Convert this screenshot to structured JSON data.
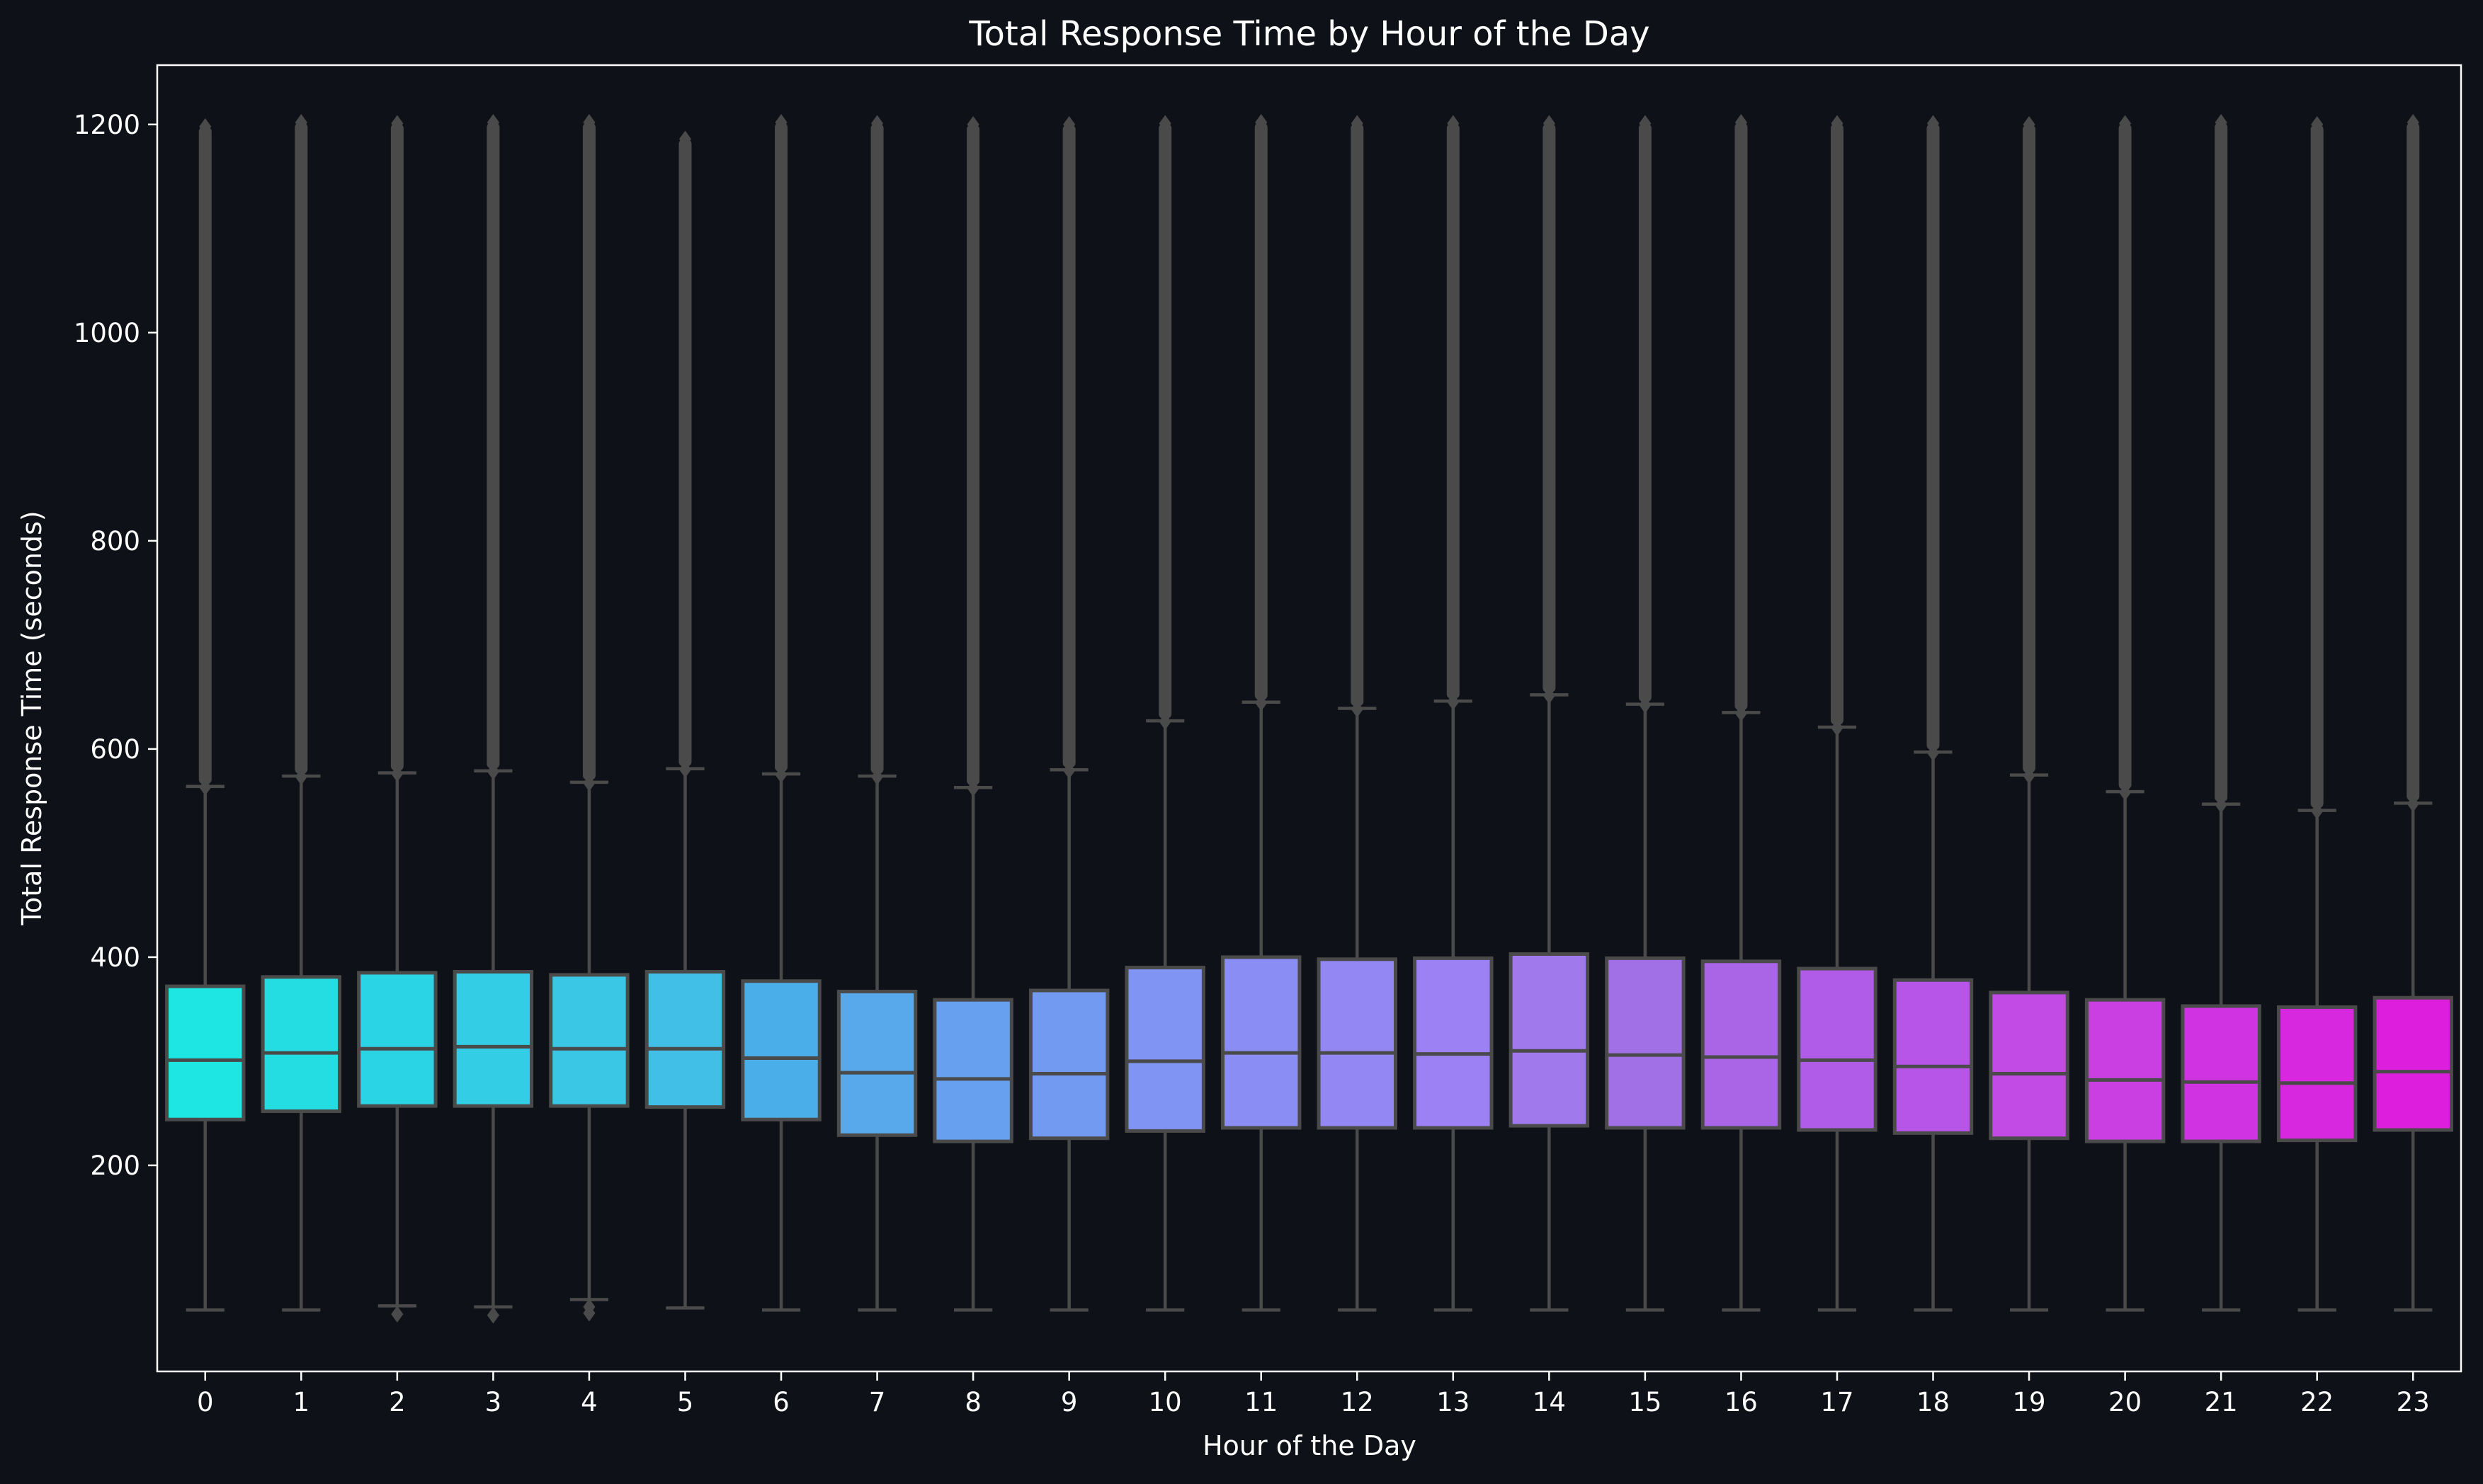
{
  "chart_data": {
    "type": "box",
    "title": "Total Response Time by Hour of the Day",
    "xlabel": "Hour of the Day",
    "ylabel": "Total Response Time (seconds)",
    "ylim": [
      2,
      1257
    ],
    "yticks": [
      200,
      400,
      600,
      800,
      1000,
      1200
    ],
    "categories": [
      "0",
      "1",
      "2",
      "3",
      "4",
      "5",
      "6",
      "7",
      "8",
      "9",
      "10",
      "11",
      "12",
      "13",
      "14",
      "15",
      "16",
      "17",
      "18",
      "19",
      "20",
      "21",
      "22",
      "23"
    ],
    "series": [
      {
        "values": [
          {
            "q1": 244,
            "median": 301,
            "q3": 372,
            "whisker_low": 61,
            "whisker_high": 564,
            "outliers_low": [],
            "outliers_high_min": 566,
            "outliers_high_max": 1198
          },
          {
            "q1": 252,
            "median": 308,
            "q3": 381,
            "whisker_low": 61,
            "whisker_high": 574,
            "outliers_low": [],
            "outliers_high_min": 576,
            "outliers_high_max": 1202
          },
          {
            "q1": 257,
            "median": 312,
            "q3": 385,
            "whisker_low": 65,
            "whisker_high": 577,
            "outliers_low": [
              57
            ],
            "outliers_high_min": 579,
            "outliers_high_max": 1201
          },
          {
            "q1": 257,
            "median": 314,
            "q3": 386,
            "whisker_low": 64,
            "whisker_high": 579,
            "outliers_low": [
              56
            ],
            "outliers_high_min": 581,
            "outliers_high_max": 1202
          },
          {
            "q1": 257,
            "median": 312,
            "q3": 383,
            "whisker_low": 71,
            "whisker_high": 568,
            "outliers_low": [
              58,
              64
            ],
            "outliers_high_min": 570,
            "outliers_high_max": 1202
          },
          {
            "q1": 256,
            "median": 312,
            "q3": 386,
            "whisker_low": 63,
            "whisker_high": 581,
            "outliers_low": [],
            "outliers_high_min": 583,
            "outliers_high_max": 1186
          },
          {
            "q1": 244,
            "median": 303,
            "q3": 377,
            "whisker_low": 61,
            "whisker_high": 576,
            "outliers_low": [],
            "outliers_high_min": 578,
            "outliers_high_max": 1202
          },
          {
            "q1": 229,
            "median": 289,
            "q3": 367,
            "whisker_low": 61,
            "whisker_high": 574,
            "outliers_low": [],
            "outliers_high_min": 576,
            "outliers_high_max": 1201
          },
          {
            "q1": 223,
            "median": 283,
            "q3": 359,
            "whisker_low": 61,
            "whisker_high": 563,
            "outliers_low": [],
            "outliers_high_min": 565,
            "outliers_high_max": 1200
          },
          {
            "q1": 226,
            "median": 288,
            "q3": 368,
            "whisker_low": 61,
            "whisker_high": 580,
            "outliers_low": [],
            "outliers_high_min": 582,
            "outliers_high_max": 1200
          },
          {
            "q1": 233,
            "median": 300,
            "q3": 390,
            "whisker_low": 61,
            "whisker_high": 627,
            "outliers_low": [],
            "outliers_high_min": 629,
            "outliers_high_max": 1201
          },
          {
            "q1": 236,
            "median": 308,
            "q3": 400,
            "whisker_low": 61,
            "whisker_high": 645,
            "outliers_low": [],
            "outliers_high_min": 647,
            "outliers_high_max": 1202
          },
          {
            "q1": 236,
            "median": 308,
            "q3": 398,
            "whisker_low": 61,
            "whisker_high": 639,
            "outliers_low": [],
            "outliers_high_min": 641,
            "outliers_high_max": 1201
          },
          {
            "q1": 236,
            "median": 307,
            "q3": 399,
            "whisker_low": 61,
            "whisker_high": 646,
            "outliers_low": [],
            "outliers_high_min": 648,
            "outliers_high_max": 1201
          },
          {
            "q1": 238,
            "median": 310,
            "q3": 403,
            "whisker_low": 61,
            "whisker_high": 652,
            "outliers_low": [],
            "outliers_high_min": 654,
            "outliers_high_max": 1201
          },
          {
            "q1": 236,
            "median": 306,
            "q3": 399,
            "whisker_low": 61,
            "whisker_high": 643,
            "outliers_low": [],
            "outliers_high_min": 645,
            "outliers_high_max": 1201
          },
          {
            "q1": 236,
            "median": 304,
            "q3": 396,
            "whisker_low": 61,
            "whisker_high": 635,
            "outliers_low": [],
            "outliers_high_min": 637,
            "outliers_high_max": 1202
          },
          {
            "q1": 234,
            "median": 301,
            "q3": 389,
            "whisker_low": 61,
            "whisker_high": 621,
            "outliers_low": [],
            "outliers_high_min": 623,
            "outliers_high_max": 1201
          },
          {
            "q1": 231,
            "median": 295,
            "q3": 378,
            "whisker_low": 61,
            "whisker_high": 597,
            "outliers_low": [],
            "outliers_high_min": 599,
            "outliers_high_max": 1201
          },
          {
            "q1": 226,
            "median": 288,
            "q3": 366,
            "whisker_low": 61,
            "whisker_high": 575,
            "outliers_low": [],
            "outliers_high_min": 577,
            "outliers_high_max": 1200
          },
          {
            "q1": 223,
            "median": 282,
            "q3": 359,
            "whisker_low": 61,
            "whisker_high": 559,
            "outliers_low": [],
            "outliers_high_min": 561,
            "outliers_high_max": 1201
          },
          {
            "q1": 223,
            "median": 280,
            "q3": 353,
            "whisker_low": 61,
            "whisker_high": 547,
            "outliers_low": [],
            "outliers_high_min": 549,
            "outliers_high_max": 1202
          },
          {
            "q1": 224,
            "median": 279,
            "q3": 352,
            "whisker_low": 61,
            "whisker_high": 541,
            "outliers_low": [],
            "outliers_high_min": 543,
            "outliers_high_max": 1200
          },
          {
            "q1": 234,
            "median": 290,
            "q3": 361,
            "whisker_low": 61,
            "whisker_high": 548,
            "outliers_low": [],
            "outliers_high_min": 550,
            "outliers_high_max": 1202
          }
        ]
      }
    ],
    "box_colors": [
      "#1ee6e2",
      "#24dde3",
      "#2ad4e4",
      "#33cde5",
      "#3ac6e5",
      "#41bfe6",
      "#4aafe8",
      "#58a8ec",
      "#66a0ef",
      "#729af1",
      "#7f94f3",
      "#898df4",
      "#9387f4",
      "#9c81f4",
      "#a07aec",
      "#a270e6",
      "#a965e6",
      "#b05ce8",
      "#b755e8",
      "#c14be4",
      "#c93fe2",
      "#d033e2",
      "#d728e0",
      "#de1edd"
    ],
    "line_color": "#4a4a4a",
    "background_color": "#0e1117",
    "text_color": "#ffffff",
    "grid": false,
    "legend": "none"
  }
}
